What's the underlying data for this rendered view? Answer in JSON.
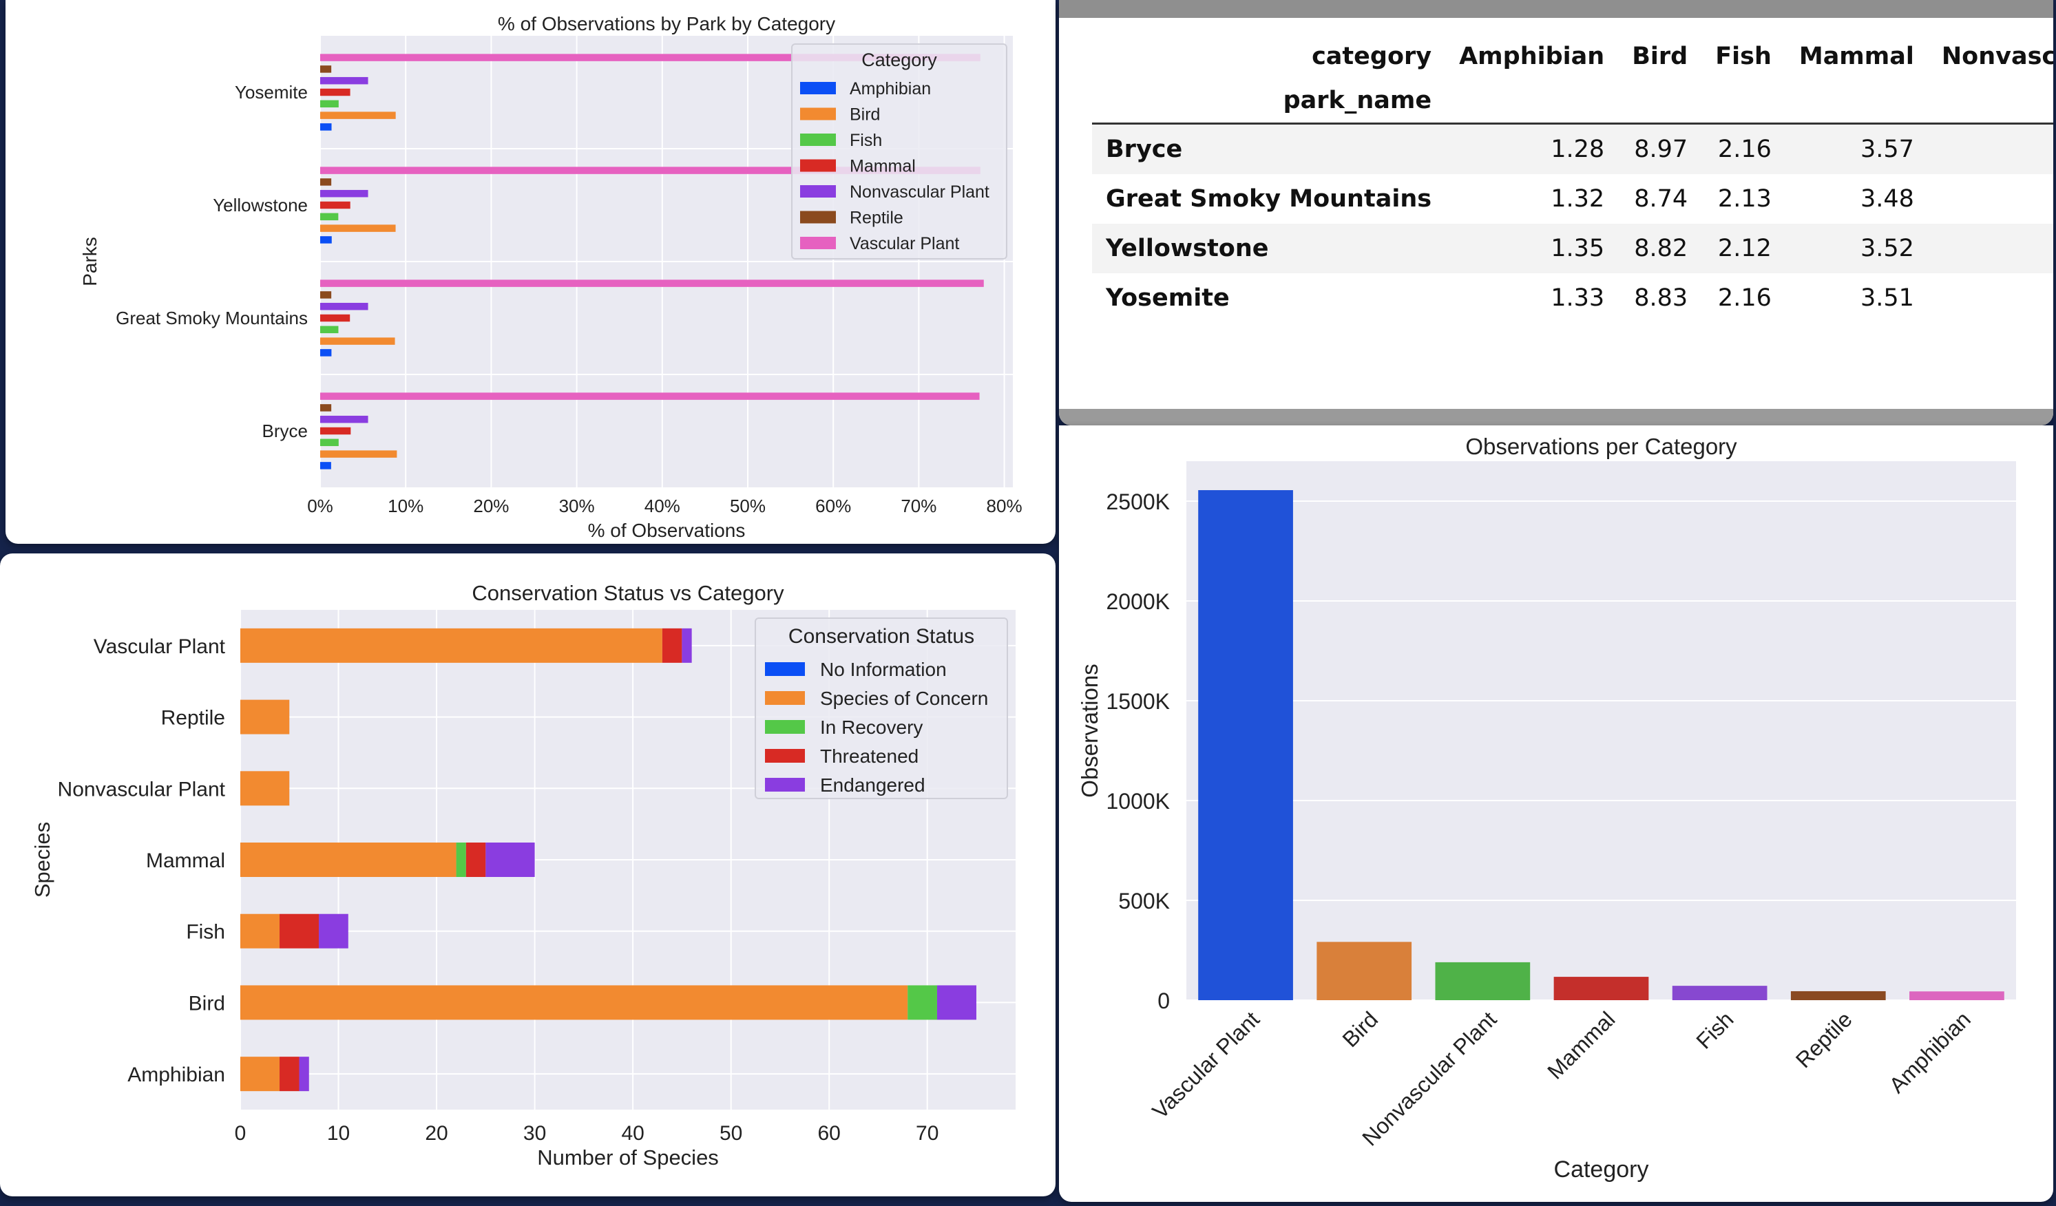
{
  "chart_data": [
    {
      "type": "bar",
      "orientation": "horizontal",
      "title": "% of Observations by Park by Category",
      "xlabel": "% of Observations",
      "ylabel": "Parks",
      "xlim": [
        0,
        81
      ],
      "xticks": [
        "0%",
        "10%",
        "20%",
        "30%",
        "40%",
        "50%",
        "60%",
        "70%",
        "80%"
      ],
      "categories": [
        "Yosemite",
        "Yellowstone",
        "Great Smoky Mountains",
        "Bryce"
      ],
      "legend_title": "Category",
      "legend_position": "top-right",
      "grid": true,
      "series": [
        {
          "name": "Amphibian",
          "color": "#0b4ff5",
          "values": [
            1.33,
            1.35,
            1.32,
            1.28
          ]
        },
        {
          "name": "Bird",
          "color": "#f28a30",
          "values": [
            8.83,
            8.82,
            8.74,
            8.97
          ]
        },
        {
          "name": "Fish",
          "color": "#54c848",
          "values": [
            2.16,
            2.12,
            2.13,
            2.16
          ]
        },
        {
          "name": "Mammal",
          "color": "#d82a24",
          "values": [
            3.51,
            3.52,
            3.48,
            3.57
          ]
        },
        {
          "name": "Nonvascular Plant",
          "color": "#8a3de0",
          "values": [
            5.6,
            5.6,
            5.6,
            5.6
          ]
        },
        {
          "name": "Reptile",
          "color": "#8b4a1e",
          "values": [
            1.3,
            1.3,
            1.3,
            1.3
          ]
        },
        {
          "name": "Vascular Plant",
          "color": "#e661c0",
          "values": [
            77.2,
            77.2,
            77.6,
            77.1
          ]
        }
      ]
    },
    {
      "type": "table",
      "column_index_label": "category",
      "row_index_label": "park_name",
      "columns": [
        "Amphibian",
        "Bird",
        "Fish",
        "Mammal",
        "Nonvascular"
      ],
      "rows": [
        {
          "park": "Bryce",
          "values": [
            "1.28",
            "8.97",
            "2.16",
            "3.57",
            ""
          ]
        },
        {
          "park": "Great Smoky Mountains",
          "values": [
            "1.32",
            "8.74",
            "2.13",
            "3.48",
            ""
          ]
        },
        {
          "park": "Yellowstone",
          "values": [
            "1.35",
            "8.82",
            "2.12",
            "3.52",
            ""
          ]
        },
        {
          "park": "Yosemite",
          "values": [
            "1.33",
            "8.83",
            "2.16",
            "3.51",
            ""
          ]
        }
      ]
    },
    {
      "type": "bar",
      "orientation": "horizontal",
      "stacked": true,
      "title": "Conservation Status vs Category",
      "xlabel": "Number of Species",
      "ylabel": "Species",
      "xlim": [
        0,
        79
      ],
      "xticks": [
        0,
        10,
        20,
        30,
        40,
        50,
        60,
        70
      ],
      "categories": [
        "Vascular Plant",
        "Reptile",
        "Nonvascular Plant",
        "Mammal",
        "Fish",
        "Bird",
        "Amphibian"
      ],
      "legend_title": "Conservation Status",
      "legend_position": "top-right",
      "grid": true,
      "series": [
        {
          "name": "No Information",
          "color": "#0b4ff5",
          "values": [
            0,
            0,
            0,
            0,
            0,
            0,
            0
          ]
        },
        {
          "name": "Species of Concern",
          "color": "#f28a30",
          "values": [
            43,
            5,
            5,
            22,
            4,
            68,
            4
          ]
        },
        {
          "name": "In Recovery",
          "color": "#54c848",
          "values": [
            0,
            0,
            0,
            1,
            0,
            3,
            0
          ]
        },
        {
          "name": "Threatened",
          "color": "#d82a24",
          "values": [
            2,
            0,
            0,
            2,
            4,
            0,
            2
          ]
        },
        {
          "name": "Endangered",
          "color": "#8a3de0",
          "values": [
            1,
            0,
            0,
            5,
            3,
            4,
            1
          ]
        }
      ]
    },
    {
      "type": "bar",
      "title": "Observations per Category",
      "xlabel": "Category",
      "ylabel": "Observations",
      "ylim": [
        0,
        2700000
      ],
      "yticks": [
        "0",
        "500K",
        "1000K",
        "1500K",
        "2000K",
        "2500K"
      ],
      "grid": true,
      "categories": [
        "Vascular Plant",
        "Bird",
        "Nonvascular Plant",
        "Mammal",
        "Fish",
        "Reptile",
        "Amphibian"
      ],
      "colors": [
        "#2052d8",
        "#d9803a",
        "#4fb248",
        "#c42f2b",
        "#8748d0",
        "#8a4a22",
        "#dc66bf"
      ],
      "values": [
        2555000,
        292000,
        190000,
        117000,
        72000,
        45000,
        44000
      ]
    }
  ]
}
